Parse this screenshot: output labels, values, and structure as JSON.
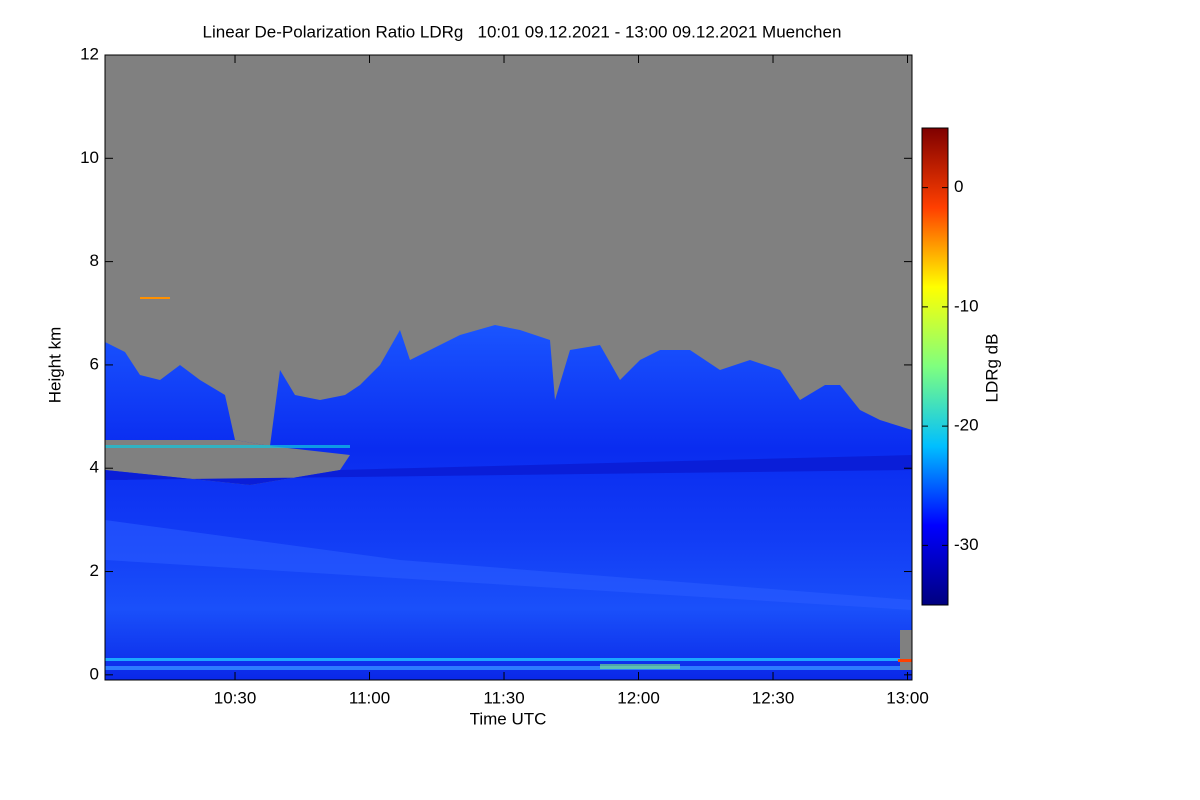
{
  "chart_data": {
    "type": "heatmap",
    "title": "Linear De-Polarization Ratio LDRg   10:01 09.12.2021 - 13:00 09.12.2021 Muenchen",
    "x_label": "Time UTC",
    "y_label": "Height km",
    "xlim": [
      601,
      781
    ],
    "xticks": [
      {
        "value": 630,
        "label": "10:30"
      },
      {
        "value": 660,
        "label": "11:00"
      },
      {
        "value": 690,
        "label": "11:30"
      },
      {
        "value": 720,
        "label": "12:00"
      },
      {
        "value": 750,
        "label": "12:30"
      },
      {
        "value": 780,
        "label": "13:00"
      }
    ],
    "ylim": [
      -0.1,
      12
    ],
    "yticks": [
      0,
      2,
      4,
      6,
      8,
      10,
      12
    ],
    "colorbar": {
      "label": "LDRg dB",
      "clim": [
        -35,
        5
      ],
      "ticks": [
        0,
        -10,
        -20,
        -30
      ],
      "colormap": [
        "#00007f",
        "#0000ff",
        "#00bfff",
        "#7fff7f",
        "#ffff00",
        "#ff3f00",
        "#7f0000"
      ]
    }
  }
}
